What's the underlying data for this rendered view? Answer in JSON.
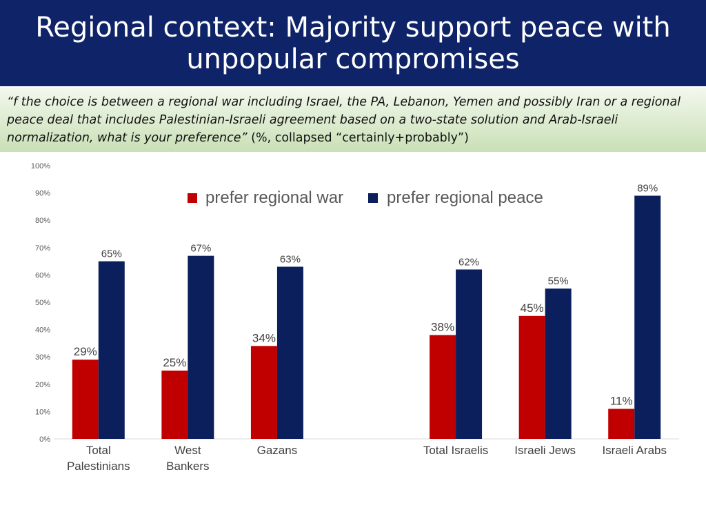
{
  "slide": {
    "title": "Regional context: Majority support peace with unpopular compromises",
    "question_italic": "“f the choice is between a regional war including Israel, the PA, Lebanon, Yemen and possibly Iran or  a regional peace deal that includes Palestinian-Israeli agreement based on a two-state solution and Arab-Israeli normalization, what is your preference”",
    "question_suffix": " (%, collapsed “certainly+probably”)"
  },
  "colors": {
    "title_band": "#0f2468",
    "war": "#c00000",
    "peace": "#0a1f5c"
  },
  "chart_data": {
    "type": "bar",
    "categories": [
      "Total Palestinians",
      "West Bankers",
      "Gazans",
      "",
      "Total Israelis",
      "Israeli Jews",
      "Israeli Arabs"
    ],
    "category_lines": [
      [
        "Total",
        "Palestinians"
      ],
      [
        "West",
        "Bankers"
      ],
      [
        "Gazans"
      ],
      [],
      [
        "Total Israelis"
      ],
      [
        "Israeli Jews"
      ],
      [
        "Israeli Arabs"
      ]
    ],
    "series": [
      {
        "name": "prefer regional war",
        "color": "#c00000",
        "values": [
          29,
          25,
          34,
          null,
          38,
          45,
          11
        ],
        "labels": [
          "29%",
          "25%",
          "34%",
          "",
          "38%",
          "45%",
          "11%"
        ]
      },
      {
        "name": "prefer regional peace",
        "color": "#0a1f5c",
        "values": [
          65,
          67,
          63,
          null,
          62,
          55,
          89
        ],
        "labels": [
          "65%",
          "67%",
          "63%",
          "",
          "62%",
          "55%",
          "89%"
        ]
      }
    ],
    "yticks": [
      "0%",
      "10%",
      "20%",
      "30%",
      "40%",
      "50%",
      "60%",
      "70%",
      "80%",
      "90%",
      "100%"
    ],
    "ylim": [
      0,
      100
    ],
    "grid": false,
    "legend_position": "top-center"
  }
}
